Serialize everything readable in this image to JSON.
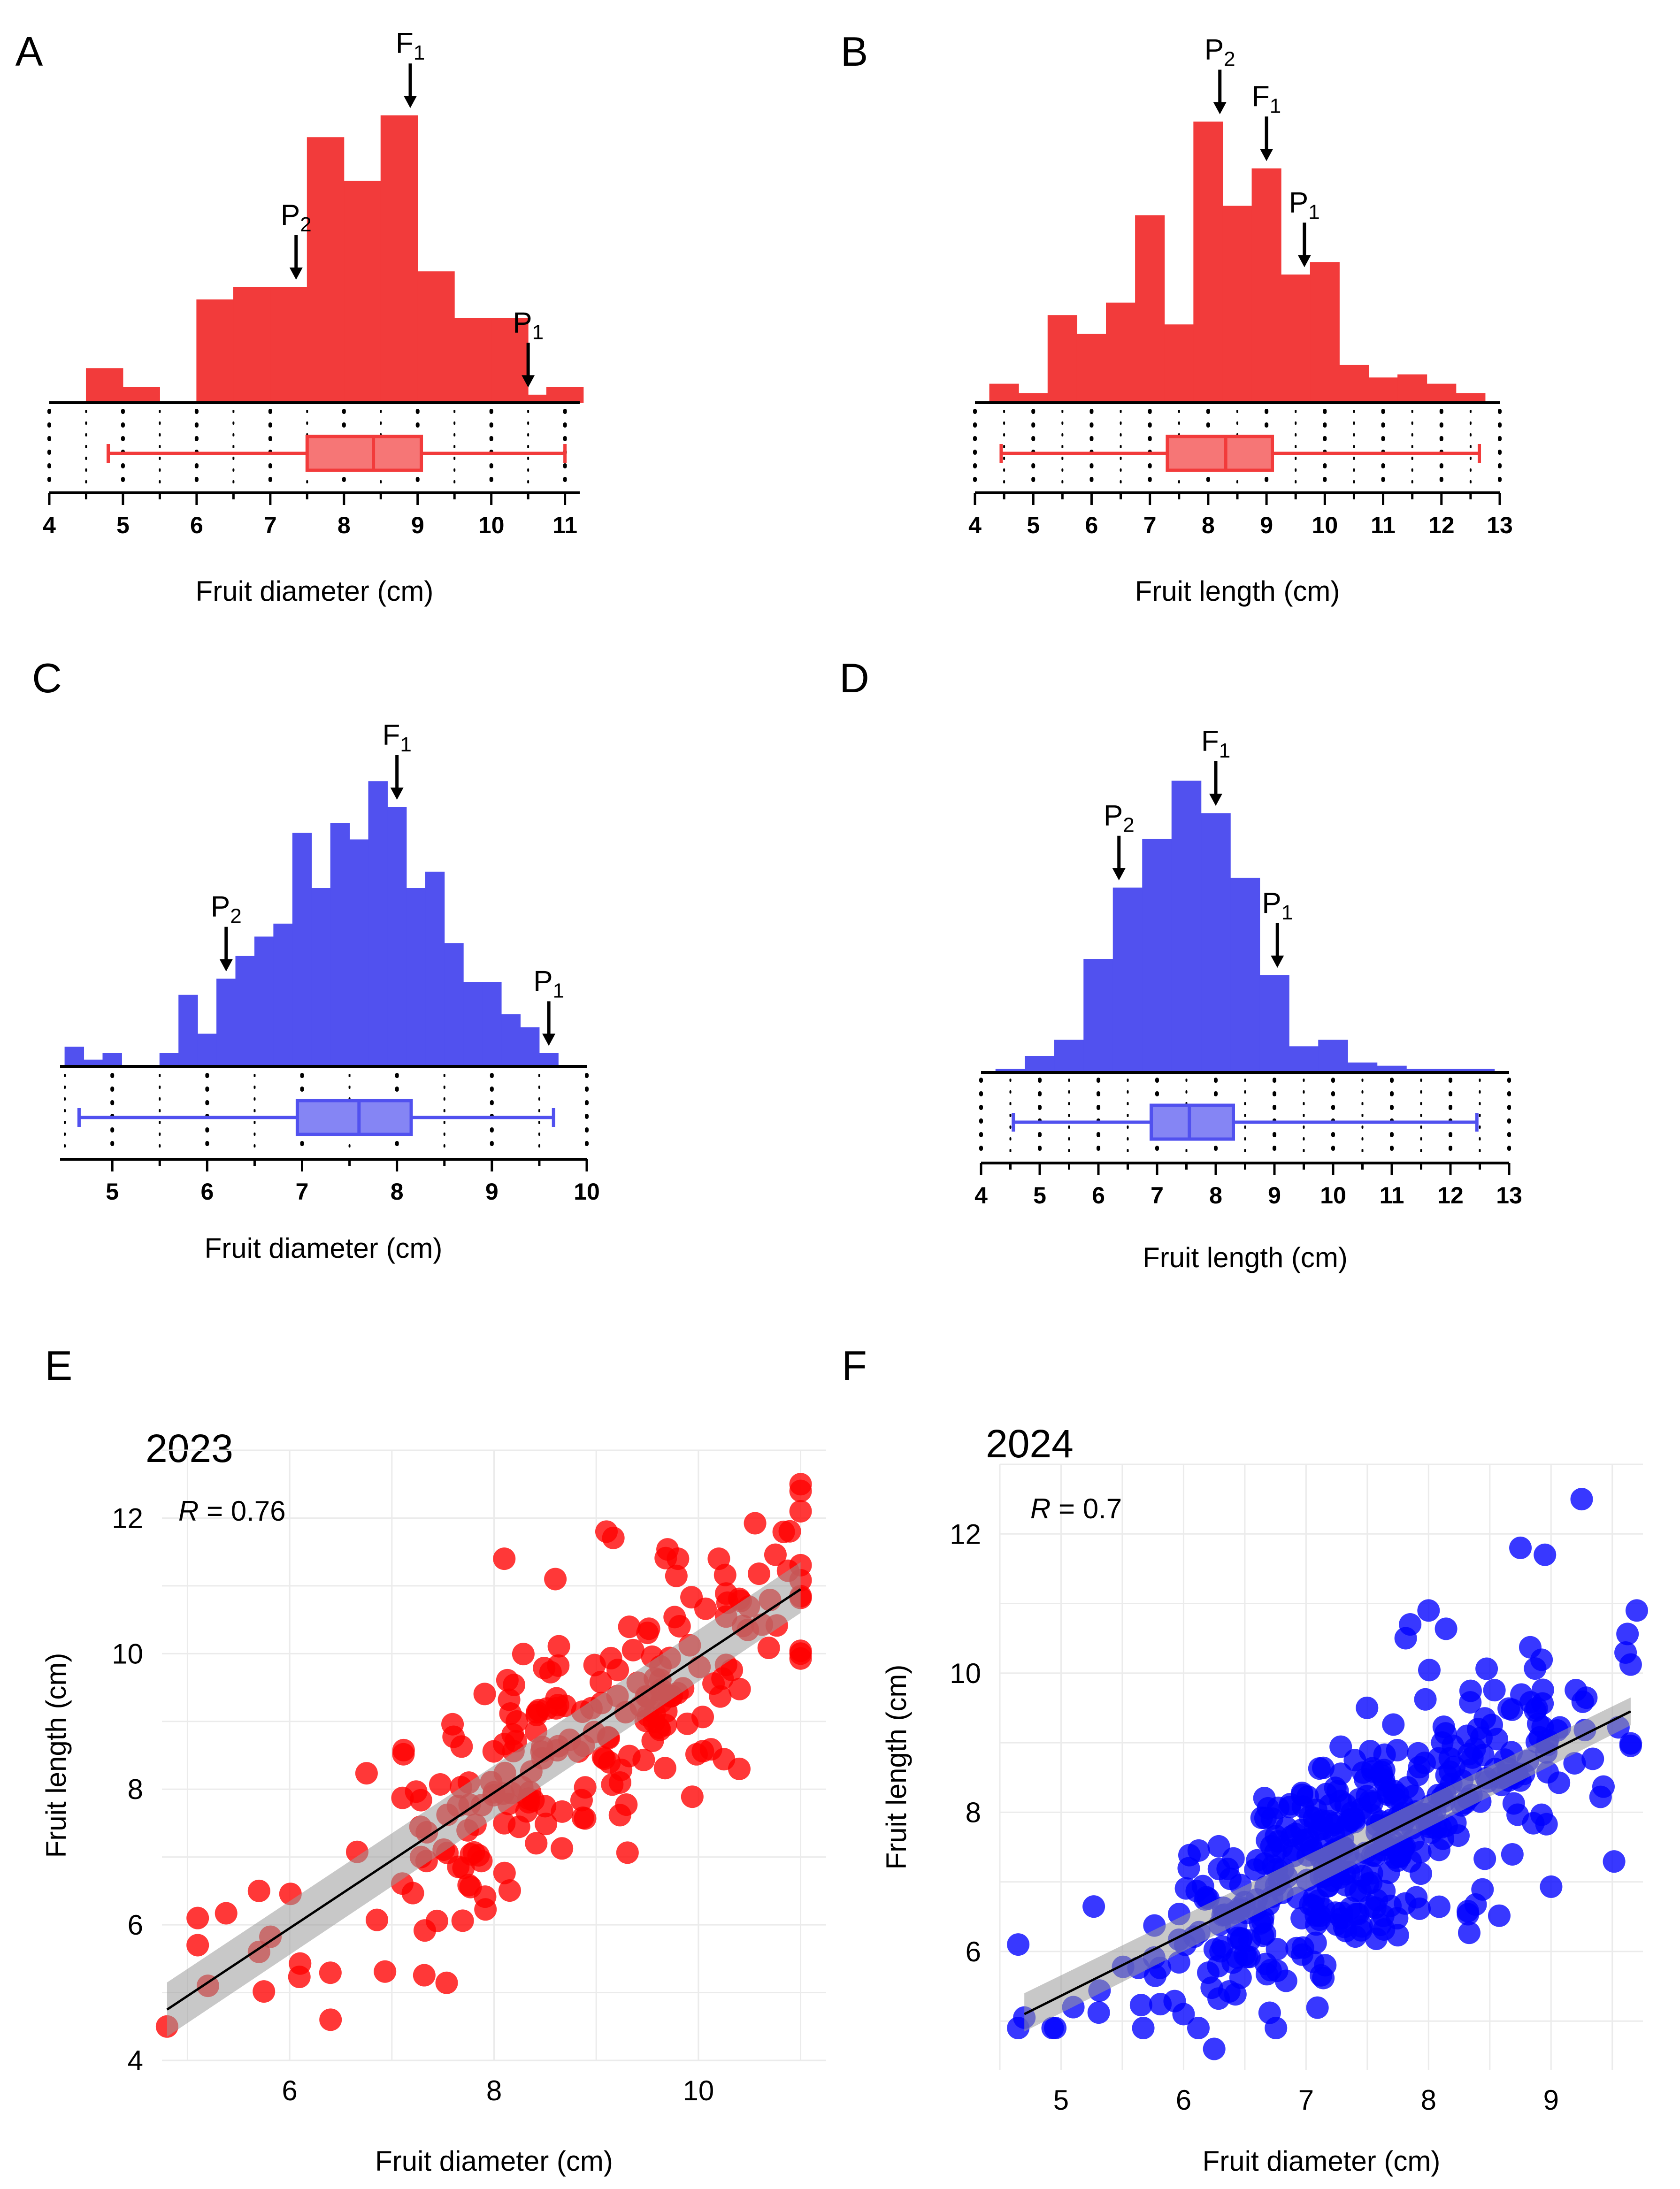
{
  "colors": {
    "red": "#f23b3b",
    "blue": "#5151ef",
    "scatter_red": "#ff0000",
    "scatter_blue": "#0000ff"
  },
  "chart_data": [
    {
      "id": "A",
      "type": "bar",
      "panel_label": "A",
      "xlabel": "Fruit diameter (cm)",
      "xlim": [
        4,
        11.2
      ],
      "bin_width": 0.5,
      "ticks": [
        4,
        5,
        6,
        7,
        8,
        9,
        10,
        11
      ],
      "bins": [
        [
          4.75,
          0.11
        ],
        [
          5.25,
          0.05
        ],
        [
          5.75,
          0
        ],
        [
          6.25,
          0.33
        ],
        [
          6.75,
          0.37
        ],
        [
          7.25,
          0.37
        ],
        [
          7.75,
          0.85
        ],
        [
          8.25,
          0.71
        ],
        [
          8.75,
          0.92
        ],
        [
          9.25,
          0.42
        ],
        [
          9.75,
          0.27
        ],
        [
          10.25,
          0.27
        ],
        [
          10.75,
          0.025
        ],
        [
          11.0,
          0.05
        ]
      ],
      "box": {
        "min": 4.8,
        "q1": 7.5,
        "median": 8.4,
        "q3": 9.05,
        "max": 11.0
      },
      "arrows": [
        {
          "base": "F",
          "sub": "1",
          "x": 8.9
        },
        {
          "base": "P",
          "sub": "2",
          "x": 7.35
        },
        {
          "base": "P",
          "sub": "1",
          "x": 10.5
        }
      ],
      "color": "#f23b3b"
    },
    {
      "id": "B",
      "type": "bar",
      "panel_label": "B",
      "xlabel": "Fruit length (cm)",
      "xlim": [
        4,
        13
      ],
      "bin_width": 0.5,
      "ticks": [
        4,
        5,
        6,
        7,
        8,
        9,
        10,
        11,
        12,
        13
      ],
      "bins": [
        [
          4.5,
          0.06
        ],
        [
          5,
          0.03
        ],
        [
          5.5,
          0.28
        ],
        [
          6,
          0.22
        ],
        [
          6.5,
          0.32
        ],
        [
          7,
          0.6
        ],
        [
          7.5,
          0.25
        ],
        [
          8,
          0.9
        ],
        [
          8.5,
          0.63
        ],
        [
          9,
          0.75
        ],
        [
          9.5,
          0.41
        ],
        [
          10,
          0.45
        ],
        [
          10.5,
          0.12
        ],
        [
          11,
          0.08
        ],
        [
          11.5,
          0.09
        ],
        [
          12,
          0.06
        ],
        [
          12.5,
          0.03
        ]
      ],
      "box": {
        "min": 4.45,
        "q1": 7.3,
        "median": 8.3,
        "q3": 9.1,
        "max": 12.65
      },
      "arrows": [
        {
          "base": "P",
          "sub": "2",
          "x": 8.2
        },
        {
          "base": "F",
          "sub": "1",
          "x": 9.0
        },
        {
          "base": "P",
          "sub": "1",
          "x": 9.65
        }
      ],
      "color": "#f23b3b"
    },
    {
      "id": "C",
      "type": "bar",
      "panel_label": "C",
      "xlabel": "Fruit diameter (cm)",
      "xlim": [
        4.45,
        10
      ],
      "bin_width": 0.2,
      "ticks": [
        5,
        6,
        7,
        8,
        9,
        10
      ],
      "bins": [
        [
          4.6,
          0.06
        ],
        [
          4.8,
          0.02
        ],
        [
          5.0,
          0.04
        ],
        [
          5.2,
          0
        ],
        [
          5.4,
          0
        ],
        [
          5.6,
          0.04
        ],
        [
          5.8,
          0.22
        ],
        [
          6.0,
          0.1
        ],
        [
          6.2,
          0.27
        ],
        [
          6.4,
          0.34
        ],
        [
          6.6,
          0.4
        ],
        [
          6.8,
          0.44
        ],
        [
          7.0,
          0.72
        ],
        [
          7.2,
          0.55
        ],
        [
          7.4,
          0.75
        ],
        [
          7.6,
          0.7
        ],
        [
          7.8,
          0.88
        ],
        [
          8.0,
          0.8
        ],
        [
          8.2,
          0.55
        ],
        [
          8.4,
          0.6
        ],
        [
          8.6,
          0.38
        ],
        [
          8.8,
          0.26
        ],
        [
          9.0,
          0.26
        ],
        [
          9.2,
          0.16
        ],
        [
          9.4,
          0.12
        ],
        [
          9.6,
          0.04
        ]
      ],
      "box": {
        "min": 4.65,
        "q1": 6.95,
        "median": 7.6,
        "q3": 8.15,
        "max": 9.65
      },
      "arrows": [
        {
          "base": "F",
          "sub": "1",
          "x": 8.0
        },
        {
          "base": "P",
          "sub": "2",
          "x": 6.2
        },
        {
          "base": "P",
          "sub": "1",
          "x": 9.6
        }
      ],
      "color": "#5151ef"
    },
    {
      "id": "D",
      "type": "bar",
      "panel_label": "D",
      "xlabel": "Fruit length (cm)",
      "xlim": [
        4,
        13
      ],
      "bin_width": 0.5,
      "ticks": [
        4,
        5,
        6,
        7,
        8,
        9,
        10,
        11,
        12,
        13
      ],
      "bins": [
        [
          4.5,
          0.01
        ],
        [
          5,
          0.05
        ],
        [
          5.5,
          0.1
        ],
        [
          6,
          0.35
        ],
        [
          6.5,
          0.57
        ],
        [
          7,
          0.72
        ],
        [
          7.5,
          0.9
        ],
        [
          8,
          0.8
        ],
        [
          8.5,
          0.6
        ],
        [
          9,
          0.3
        ],
        [
          9.5,
          0.08
        ],
        [
          10,
          0.1
        ],
        [
          10.5,
          0.03
        ],
        [
          11,
          0.02
        ],
        [
          11.5,
          0.01
        ],
        [
          12,
          0.01
        ],
        [
          12.5,
          0.01
        ]
      ],
      "box": {
        "min": 4.55,
        "q1": 6.9,
        "median": 7.55,
        "q3": 8.3,
        "max": 12.45
      },
      "arrows": [
        {
          "base": "F",
          "sub": "1",
          "x": 8.0
        },
        {
          "base": "P",
          "sub": "2",
          "x": 6.35
        },
        {
          "base": "P",
          "sub": "1",
          "x": 9.05
        }
      ],
      "color": "#5151ef"
    },
    {
      "id": "E",
      "type": "scatter",
      "panel_label": "E",
      "title": "2023",
      "annotation": {
        "var": "R",
        "text": " = 0.76"
      },
      "xlabel": "Fruit diameter (cm)",
      "ylabel": "Fruit length (cm)",
      "xlim": [
        4.75,
        11.25
      ],
      "ylim": [
        4,
        13
      ],
      "xticks": [
        6,
        8,
        10
      ],
      "yticks": [
        4,
        6,
        8,
        10,
        12
      ],
      "fit": {
        "x0": 4.8,
        "y0": 4.75,
        "x1": 11.0,
        "y1": 10.95,
        "ci_lo": [
          4.35,
          10.6
        ],
        "ci_hi": [
          5.15,
          11.35
        ]
      },
      "color": "#ff0000",
      "n_points": 214,
      "seed": 11,
      "outliers": [
        [
          4.8,
          4.5
        ],
        [
          6.4,
          4.6
        ],
        [
          11,
          12.5
        ],
        [
          11,
          12.1
        ],
        [
          9.1,
          11.8
        ],
        [
          8.1,
          11.4
        ],
        [
          9.8,
          11.4
        ],
        [
          10.2,
          11.4
        ],
        [
          8.6,
          11.1
        ],
        [
          5.1,
          6.1
        ],
        [
          5.1,
          5.7
        ],
        [
          5.7,
          6.5
        ],
        [
          5.7,
          5.6
        ],
        [
          5.2,
          5.1
        ],
        [
          10.4,
          8.3
        ]
      ]
    },
    {
      "id": "F",
      "type": "scatter",
      "panel_label": "F",
      "title": "2024",
      "annotation": {
        "var": "R",
        "text": " = 0.7"
      },
      "xlabel": "Fruit diameter (cm)",
      "ylabel": "Fruit length (cm)",
      "xlim": [
        4.5,
        9.75
      ],
      "ylim": [
        4.3,
        13
      ],
      "xticks": [
        5,
        6,
        7,
        8,
        9
      ],
      "yticks": [
        6,
        8,
        10,
        12
      ],
      "fit": {
        "x0": 4.7,
        "y0": 5.1,
        "x1": 9.65,
        "y1": 9.45,
        "ci_lo": [
          4.85,
          9.25
        ],
        "ci_hi": [
          5.4,
          9.65
        ]
      },
      "color": "#0000ff",
      "n_points": 418,
      "seed": 29,
      "outliers": [
        [
          4.65,
          6.1
        ],
        [
          4.65,
          4.9
        ],
        [
          4.7,
          5.05
        ],
        [
          9.25,
          12.5
        ],
        [
          8.75,
          11.8
        ],
        [
          8.95,
          11.7
        ],
        [
          8.0,
          10.9
        ],
        [
          7.85,
          10.7
        ],
        [
          9.7,
          10.9
        ],
        [
          6.25,
          4.6
        ],
        [
          6.0,
          5.1
        ],
        [
          5.1,
          5.2
        ]
      ]
    }
  ]
}
